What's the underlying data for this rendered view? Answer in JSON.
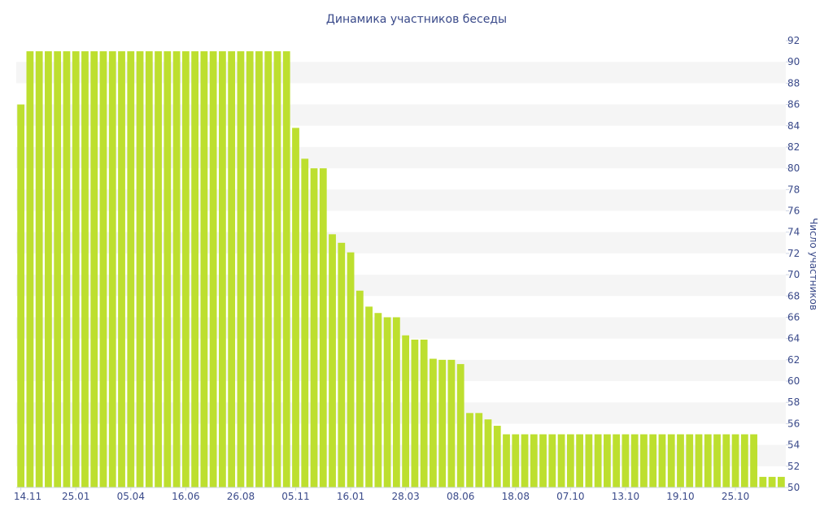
{
  "chart_data": {
    "type": "bar",
    "title": "Динамика участников беседы",
    "xlabel": "",
    "ylabel": "Число участников",
    "ylim": [
      50,
      92
    ],
    "y_ticks": [
      50,
      52,
      54,
      56,
      58,
      60,
      62,
      64,
      66,
      68,
      70,
      72,
      74,
      76,
      78,
      80,
      82,
      84,
      86,
      88,
      90,
      92
    ],
    "y_axis_position": "right",
    "grid": "alternating horizontal bands",
    "colors": {
      "bar": "#bddf2f",
      "band": "#f5f5f5",
      "text": "#3a4a8a"
    },
    "x_tick_labels": [
      {
        "index": 0,
        "label": "14.11"
      },
      {
        "index": 6,
        "label": "25.01"
      },
      {
        "index": 12,
        "label": "05.04"
      },
      {
        "index": 18,
        "label": "16.06"
      },
      {
        "index": 24,
        "label": "26.08"
      },
      {
        "index": 30,
        "label": "05.11"
      },
      {
        "index": 36,
        "label": "16.01"
      },
      {
        "index": 42,
        "label": "28.03"
      },
      {
        "index": 48,
        "label": "08.06"
      },
      {
        "index": 54,
        "label": "18.08"
      },
      {
        "index": 60,
        "label": "07.10"
      },
      {
        "index": 66,
        "label": "13.10"
      },
      {
        "index": 72,
        "label": "19.10"
      },
      {
        "index": 78,
        "label": "25.10"
      }
    ],
    "values": [
      86,
      91,
      91,
      91,
      91,
      91,
      91,
      91,
      91,
      91,
      91,
      91,
      91,
      91,
      91,
      91,
      91,
      91,
      91,
      91,
      91,
      91,
      91,
      91,
      91,
      91,
      91,
      91,
      91,
      91,
      83.8,
      80.9,
      80,
      80,
      73.8,
      73,
      72.1,
      68.5,
      67,
      66.4,
      66,
      66,
      64.3,
      63.9,
      63.9,
      62.1,
      62,
      62,
      61.6,
      57,
      57,
      56.4,
      55.8,
      55,
      55,
      55,
      55,
      55,
      55,
      55,
      55,
      55,
      55,
      55,
      55,
      55,
      55,
      55,
      55,
      55,
      55,
      55,
      55,
      55,
      55,
      55,
      55,
      55,
      55,
      55,
      55,
      51,
      51,
      51
    ]
  }
}
